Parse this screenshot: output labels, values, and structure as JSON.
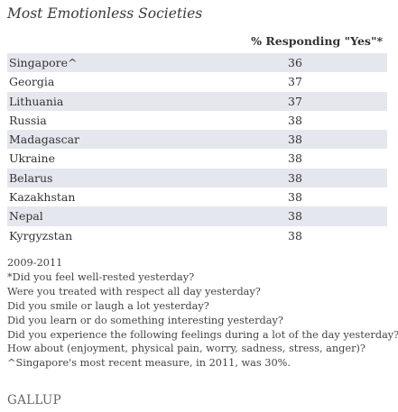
{
  "title": "Most Emotionless Societies",
  "chart_data": {
    "type": "table",
    "title": "Most Emotionless Societies",
    "columns": [
      "",
      "% Responding \"Yes\"*"
    ],
    "categories": [
      "Singapore^",
      "Georgia",
      "Lithuania",
      "Russia",
      "Madagascar",
      "Ukraine",
      "Belarus",
      "Kazakhstan",
      "Nepal",
      "Kyrgyzstan"
    ],
    "values": [
      36,
      37,
      37,
      38,
      38,
      38,
      38,
      38,
      38,
      38
    ],
    "rows": [
      {
        "country": "Singapore^",
        "value": "36"
      },
      {
        "country": "Georgia",
        "value": "37"
      },
      {
        "country": "Lithuania",
        "value": "37"
      },
      {
        "country": "Russia",
        "value": "38"
      },
      {
        "country": "Madagascar",
        "value": "38"
      },
      {
        "country": "Ukraine",
        "value": "38"
      },
      {
        "country": "Belarus",
        "value": "38"
      },
      {
        "country": "Kazakhstan",
        "value": "38"
      },
      {
        "country": "Nepal",
        "value": "38"
      },
      {
        "country": "Kyrgyzstan",
        "value": "38"
      }
    ]
  },
  "column_header": "% Responding \"Yes\"*",
  "footnotes": [
    "2009-2011",
    "*Did you feel well-rested yesterday?",
    "Were you treated with respect all day yesterday?",
    "Did you smile or laugh a lot yesterday?",
    "Did you learn or do something interesting yesterday?",
    "Did you experience the following feelings during a lot of the day yesterday?",
    "How about (enjoyment, physical pain, worry, sadness, stress, anger)?",
    "^Singapore's most recent measure, in 2011, was 30%."
  ],
  "logo": "GALLUP",
  "colors": {
    "row_shade": "#e4e7ee",
    "text": "#333333"
  }
}
